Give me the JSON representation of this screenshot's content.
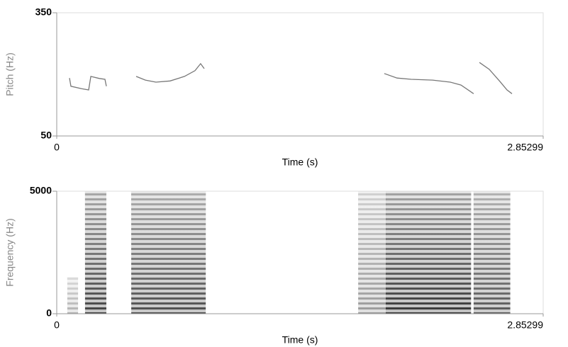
{
  "chart_data": [
    {
      "type": "line",
      "ylabel": "Pitch (Hz)",
      "xlabel": "Time (s)",
      "xlim": [
        0,
        2.85299
      ],
      "xticks": [
        0,
        2.85299
      ],
      "ylim": [
        50,
        350
      ],
      "yticks": [
        50,
        350
      ],
      "color": "#777777",
      "x": [
        0.075,
        0.083,
        0.146,
        0.187,
        0.2,
        0.25,
        0.283,
        0.291,
        0.38,
        0.466,
        0.52,
        0.582,
        0.665,
        0.749,
        0.811,
        0.844,
        0.865,
        1.4,
        1.921,
        1.996,
        2.079,
        2.204,
        2.308,
        2.371,
        2.445,
        2.46,
        2.479,
        2.537,
        2.599,
        2.641,
        2.67
      ],
      "values": [
        191,
        171,
        165,
        162,
        195,
        190,
        188,
        171,
        null,
        195,
        186,
        181,
        184,
        195,
        209,
        226,
        214,
        null,
        202,
        191,
        188,
        186,
        181,
        174,
        153,
        null,
        229,
        212,
        183,
        162,
        153
      ]
    },
    {
      "type": "spectrogram",
      "ylabel": "Frequency (Hz)",
      "xlabel": "Time (s)",
      "xlim": [
        0,
        2.85299
      ],
      "xticks": [
        0,
        2.85299
      ],
      "ylim": [
        0,
        5000
      ],
      "yticks": [
        0,
        5000
      ],
      "color": "#222222",
      "segments": [
        {
          "start": 0.062,
          "end": 0.125,
          "top": 1500,
          "level": 0.35
        },
        {
          "start": 0.166,
          "end": 0.291,
          "top": 5000,
          "level": 0.85
        },
        {
          "start": 0.437,
          "end": 0.874,
          "top": 5000,
          "level": 0.8
        },
        {
          "start": 1.768,
          "end": 1.934,
          "top": 5000,
          "level": 0.45
        },
        {
          "start": 1.93,
          "end": 2.43,
          "top": 5000,
          "level": 0.9
        },
        {
          "start": 2.445,
          "end": 2.66,
          "top": 5000,
          "level": 0.75
        }
      ]
    }
  ]
}
